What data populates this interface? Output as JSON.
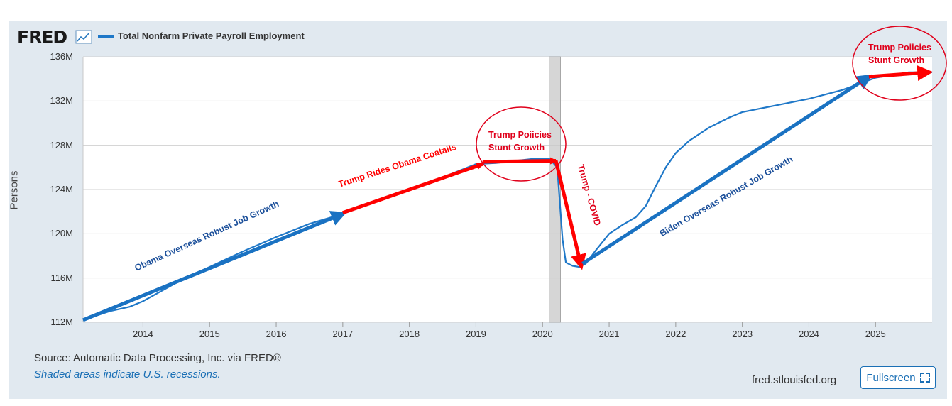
{
  "brand": {
    "logo_text": "FRED",
    "site": "fred.stlouisfed.org"
  },
  "colors": {
    "series": "#1f78c8",
    "arrow_red": "#ff0000",
    "arrow_blue": "#1a72c2",
    "annotation_blue": "#1b4f9a",
    "background": "#e1e9f0"
  },
  "chart_data": {
    "type": "line",
    "title": "Total Nonfarm Private Payroll Employment",
    "ylabel": "Persons",
    "xlabel": "",
    "xlim": [
      2013.1,
      2025.85
    ],
    "ylim": [
      112,
      136
    ],
    "y_ticks": [
      112,
      116,
      120,
      124,
      128,
      132,
      136
    ],
    "y_tick_labels": [
      "112M",
      "116M",
      "120M",
      "124M",
      "128M",
      "132M",
      "136M"
    ],
    "x_ticks": [
      2014,
      2015,
      2016,
      2017,
      2018,
      2019,
      2020,
      2021,
      2022,
      2023,
      2024,
      2025
    ],
    "x_tick_labels": [
      "2014",
      "2015",
      "2016",
      "2017",
      "2018",
      "2019",
      "2020",
      "2021",
      "2022",
      "2023",
      "2024",
      "2025"
    ],
    "grid": true,
    "recessions": [
      [
        2020.1,
        2020.27
      ]
    ],
    "series": [
      {
        "name": "Total Nonfarm Private Payroll Employment",
        "x": [
          2013.1,
          2013.5,
          2013.8,
          2014.0,
          2014.3,
          2014.6,
          2015.0,
          2015.5,
          2016.0,
          2016.5,
          2017.0,
          2017.5,
          2018.0,
          2018.5,
          2019.0,
          2019.3,
          2019.6,
          2019.9,
          2020.1,
          2020.22,
          2020.3,
          2020.35,
          2020.45,
          2020.55,
          2020.65,
          2020.8,
          2021.0,
          2021.2,
          2021.4,
          2021.55,
          2021.7,
          2021.85,
          2022.0,
          2022.2,
          2022.5,
          2022.8,
          2023.0,
          2023.5,
          2024.0,
          2024.5,
          2025.0,
          2025.5,
          2025.85
        ],
        "values": [
          112.2,
          113.0,
          113.4,
          113.9,
          114.9,
          115.9,
          117.0,
          118.4,
          119.7,
          120.9,
          121.8,
          122.9,
          124.0,
          125.1,
          126.3,
          126.4,
          126.6,
          126.8,
          126.8,
          126.0,
          119.5,
          117.4,
          117.1,
          117.0,
          117.3,
          118.5,
          120.0,
          120.8,
          121.5,
          122.5,
          124.3,
          126.0,
          127.3,
          128.4,
          129.6,
          130.5,
          131.0,
          131.6,
          132.2,
          133.0,
          134.1,
          134.6,
          134.6
        ]
      }
    ],
    "annotations": [
      {
        "label": "Obama Overseas Robust Job Growth",
        "color": "blue",
        "arrow": [
          [
            2013.1,
            112.2
          ],
          [
            2017.0,
            121.8
          ]
        ]
      },
      {
        "label": "Trump Rides Obama Coatails",
        "color": "red",
        "arrow": [
          [
            2017.0,
            121.9
          ],
          [
            2019.1,
            126.3
          ]
        ]
      },
      {
        "label": "Trump Poiicies\nStunt Growth",
        "label_lines": [
          "Trump Poiicies",
          "Stunt Growth"
        ],
        "color": "red",
        "arrow": [
          [
            2019.1,
            126.5
          ],
          [
            2020.2,
            126.6
          ]
        ],
        "circled": true
      },
      {
        "label": "Trump - COVID",
        "color": "red",
        "arrow": [
          [
            2020.2,
            126.6
          ],
          [
            2020.58,
            117.1
          ]
        ]
      },
      {
        "label": "Biden Overseas Robust Job Growth",
        "color": "blue",
        "arrow": [
          [
            2020.6,
            117.3
          ],
          [
            2024.9,
            134.2
          ]
        ]
      },
      {
        "label": "Trump Poiicies\nStunt Growth",
        "label_lines": [
          "Trump Poiicies",
          "Stunt Growth"
        ],
        "color": "red",
        "arrow": [
          [
            2024.9,
            134.2
          ],
          [
            2025.8,
            134.6
          ]
        ],
        "circled": true
      }
    ]
  },
  "footer": {
    "source": "Source: Automatic Data Processing, Inc. via FRED®",
    "recession_note": "Shaded areas indicate U.S. recessions.",
    "fullscreen_label": "Fullscreen"
  }
}
